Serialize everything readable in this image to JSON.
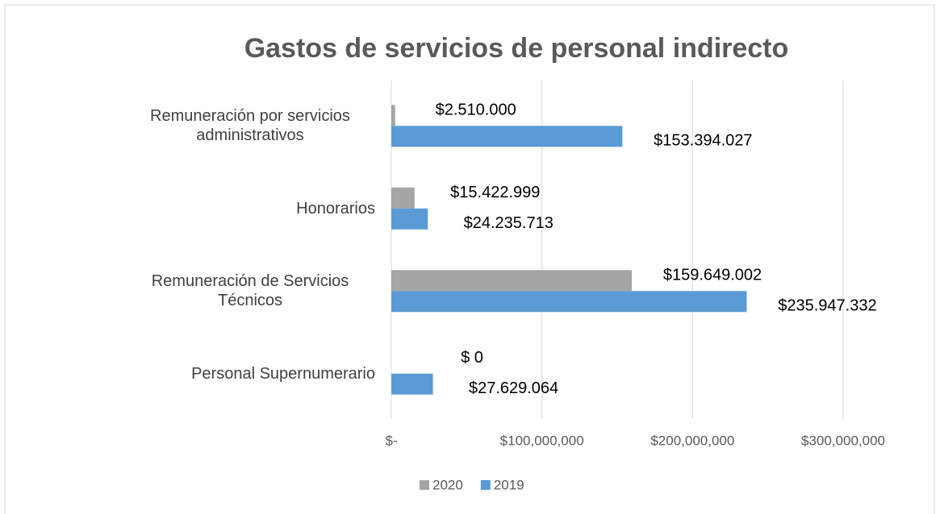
{
  "chart_data": {
    "type": "hbar",
    "title": "Gastos de servicios de personal indirecto",
    "categories": [
      "Remuneración por servicios administrativos",
      "Honorarios",
      "Remuneración de Servicios Técnicos",
      "Personal Supernumerario"
    ],
    "series": [
      {
        "name": "2020",
        "color": "#a5a5a5",
        "values": [
          2510000,
          15422999,
          159649002,
          0
        ],
        "value_labels": [
          "$2.510.000",
          "$15.422.999",
          "$159.649.002",
          "$ 0"
        ]
      },
      {
        "name": "2019",
        "color": "#5b9bd5",
        "values": [
          153394027,
          24235713,
          235947332,
          27629064
        ],
        "value_labels": [
          "$153.394.027",
          "$24.235.713",
          "$235.947.332",
          "$27.629.064"
        ]
      }
    ],
    "xlim": [
      0,
      300000000
    ],
    "xticks": [
      {
        "value": 0,
        "label": "$-"
      },
      {
        "value": 100000000,
        "label": "$100,000,000"
      },
      {
        "value": 200000000,
        "label": "$200,000,000"
      },
      {
        "value": 300000000,
        "label": "$300,000,000"
      }
    ],
    "grid": true,
    "legend": "bottom"
  }
}
